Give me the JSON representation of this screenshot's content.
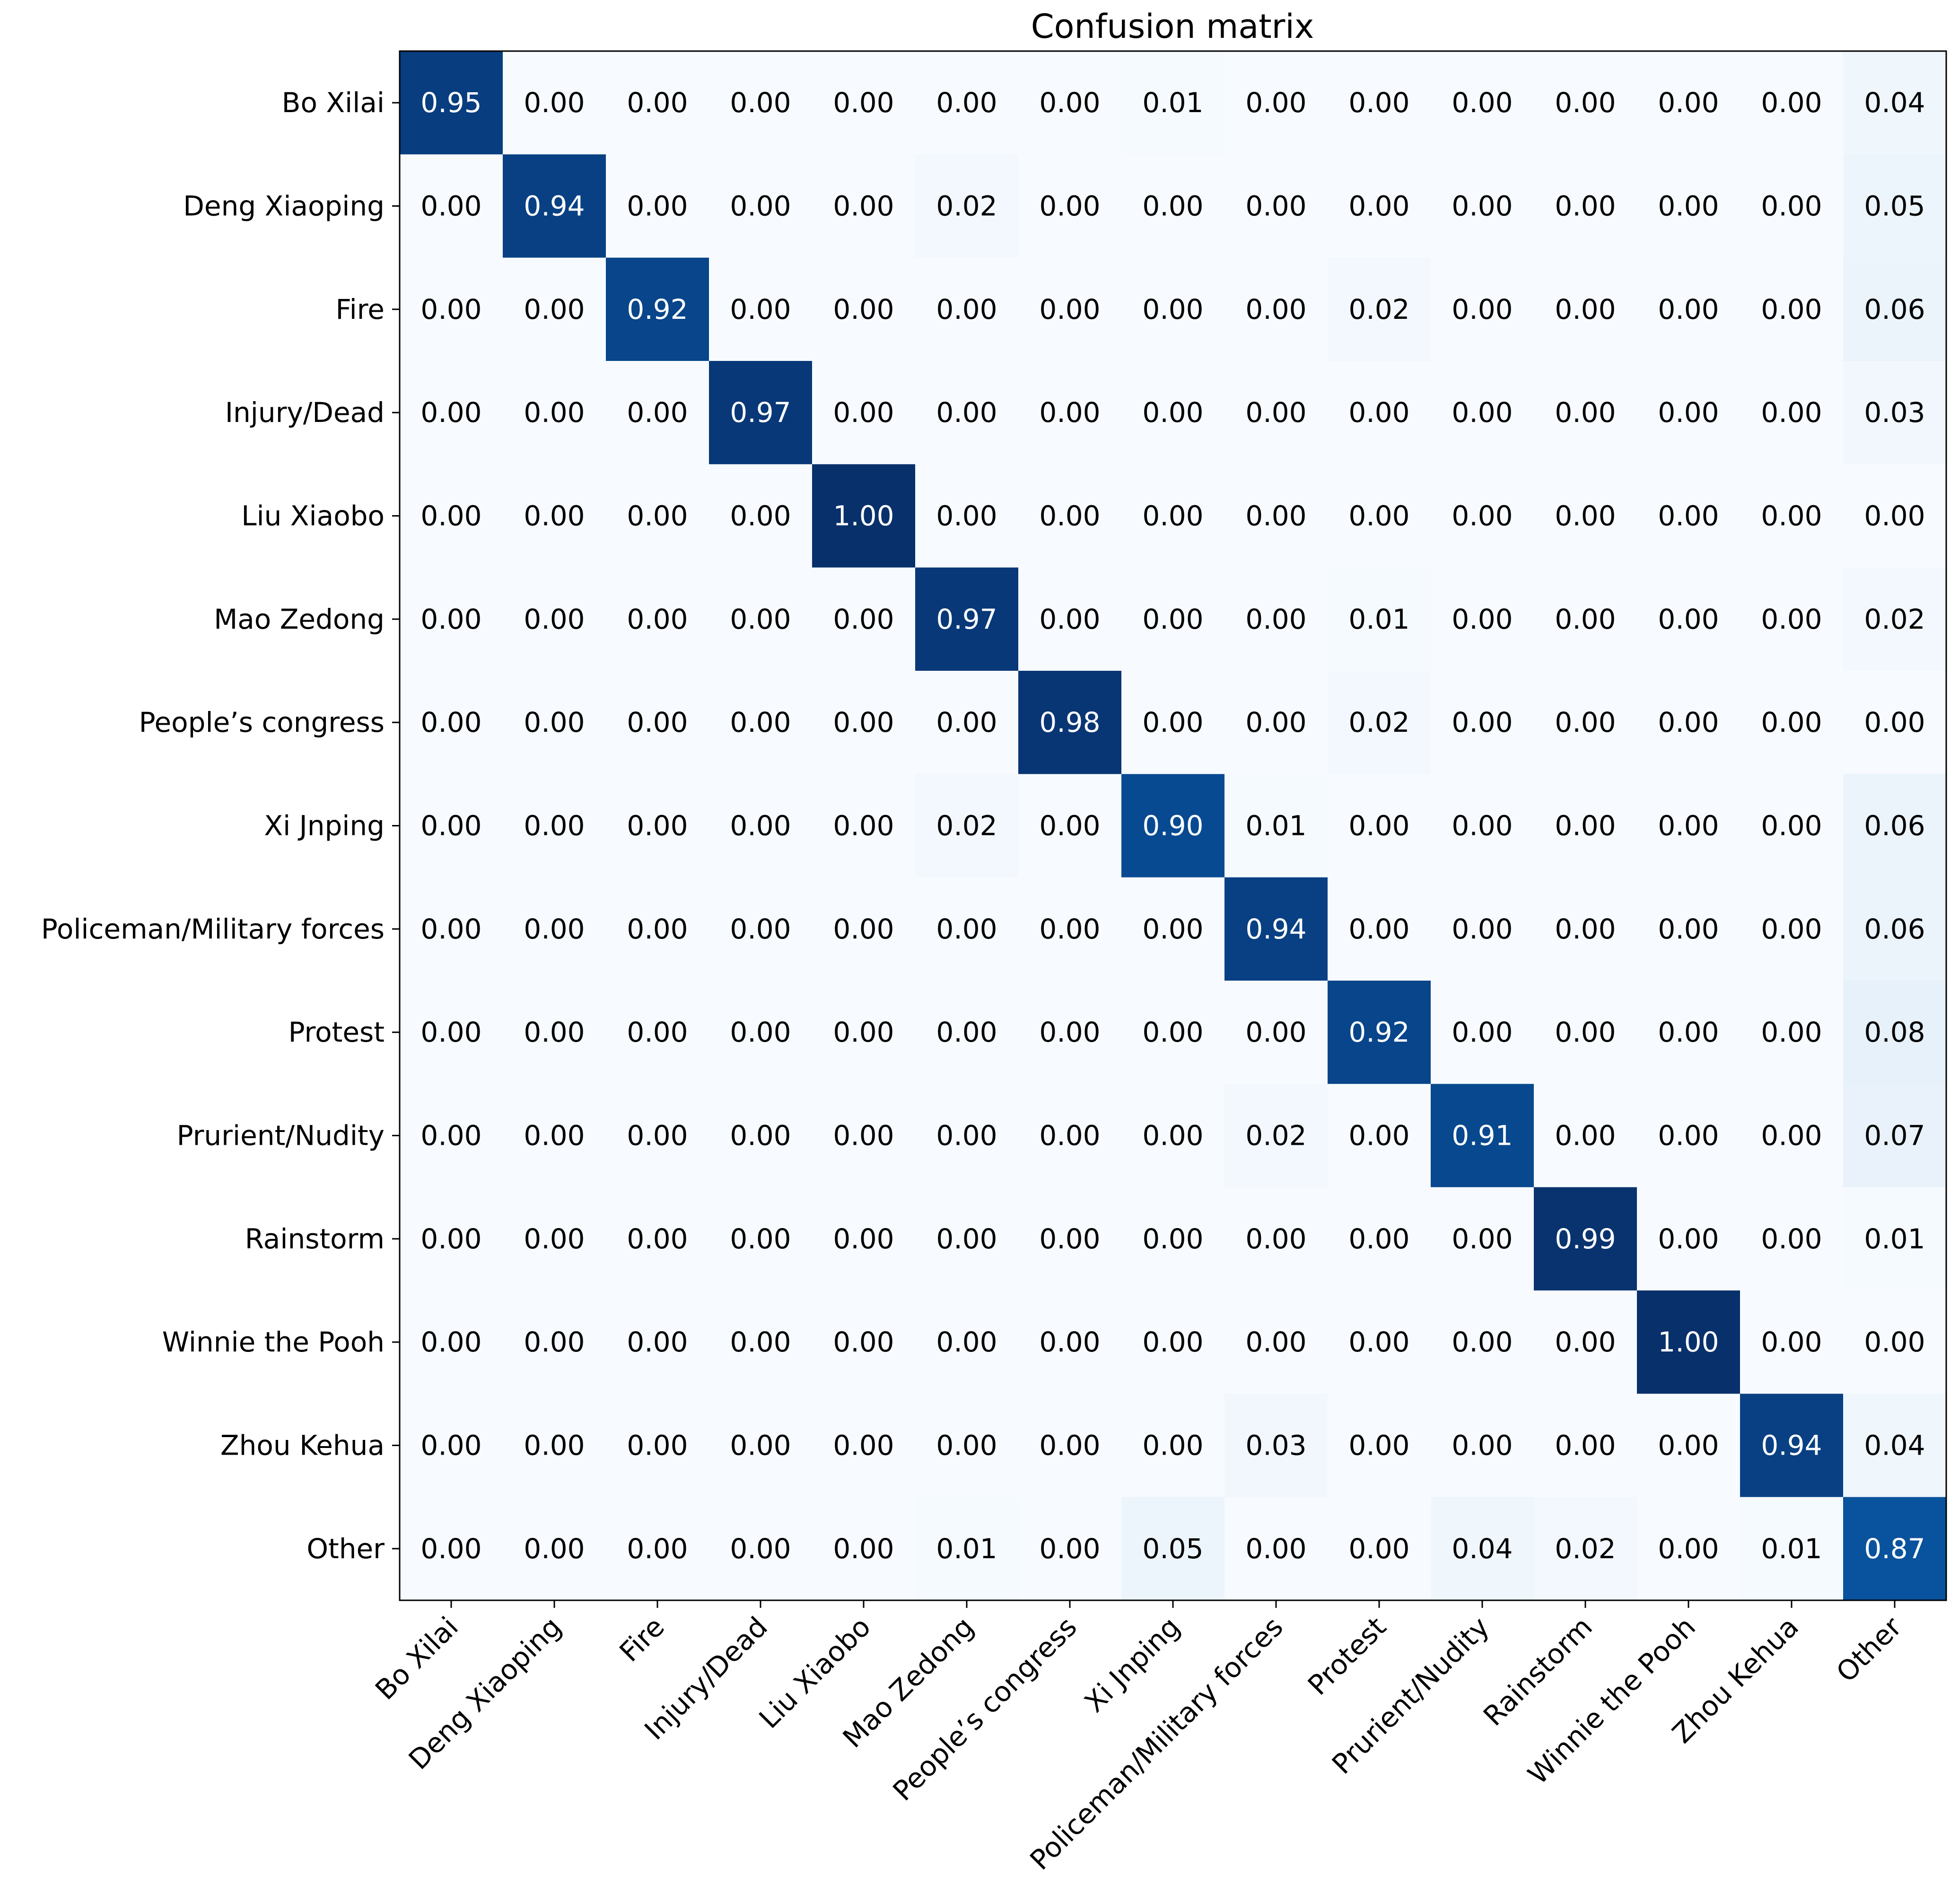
{
  "chart_data": {
    "type": "heatmap",
    "title": "Confusion matrix",
    "xlabel": "",
    "ylabel": "",
    "colormap": "Blues",
    "value_range": [
      0,
      1
    ],
    "colors": {
      "low": "#f7fbff",
      "high": "#08306b",
      "text_dark": "#000000",
      "text_light": "#ffffff"
    },
    "row_labels": [
      "Bo Xilai",
      "Deng Xiaoping",
      "Fire",
      "Injury/Dead",
      "Liu Xiaobo",
      "Mao Zedong",
      "People’s congress",
      "Xi Jnping",
      "Policeman/Military forces",
      "Protest",
      "Prurient/Nudity",
      "Rainstorm",
      "Winnie the Pooh",
      "Zhou Kehua",
      "Other"
    ],
    "col_labels": [
      "Bo Xilai",
      "Deng Xiaoping",
      "Fire",
      "Injury/Dead",
      "Liu Xiaobo",
      "Mao Zedong",
      "People’s congress",
      "Xi Jnping",
      "Policeman/Military forces",
      "Protest",
      "Prurient/Nudity",
      "Rainstorm",
      "Winnie the Pooh",
      "Zhou Kehua",
      "Other"
    ],
    "values": [
      [
        0.95,
        0.0,
        0.0,
        0.0,
        0.0,
        0.0,
        0.0,
        0.01,
        0.0,
        0.0,
        0.0,
        0.0,
        0.0,
        0.0,
        0.04
      ],
      [
        0.0,
        0.94,
        0.0,
        0.0,
        0.0,
        0.02,
        0.0,
        0.0,
        0.0,
        0.0,
        0.0,
        0.0,
        0.0,
        0.0,
        0.05
      ],
      [
        0.0,
        0.0,
        0.92,
        0.0,
        0.0,
        0.0,
        0.0,
        0.0,
        0.0,
        0.02,
        0.0,
        0.0,
        0.0,
        0.0,
        0.06
      ],
      [
        0.0,
        0.0,
        0.0,
        0.97,
        0.0,
        0.0,
        0.0,
        0.0,
        0.0,
        0.0,
        0.0,
        0.0,
        0.0,
        0.0,
        0.03
      ],
      [
        0.0,
        0.0,
        0.0,
        0.0,
        1.0,
        0.0,
        0.0,
        0.0,
        0.0,
        0.0,
        0.0,
        0.0,
        0.0,
        0.0,
        0.0
      ],
      [
        0.0,
        0.0,
        0.0,
        0.0,
        0.0,
        0.97,
        0.0,
        0.0,
        0.0,
        0.01,
        0.0,
        0.0,
        0.0,
        0.0,
        0.02
      ],
      [
        0.0,
        0.0,
        0.0,
        0.0,
        0.0,
        0.0,
        0.98,
        0.0,
        0.0,
        0.02,
        0.0,
        0.0,
        0.0,
        0.0,
        0.0
      ],
      [
        0.0,
        0.0,
        0.0,
        0.0,
        0.0,
        0.02,
        0.0,
        0.9,
        0.01,
        0.0,
        0.0,
        0.0,
        0.0,
        0.0,
        0.06
      ],
      [
        0.0,
        0.0,
        0.0,
        0.0,
        0.0,
        0.0,
        0.0,
        0.0,
        0.94,
        0.0,
        0.0,
        0.0,
        0.0,
        0.0,
        0.06
      ],
      [
        0.0,
        0.0,
        0.0,
        0.0,
        0.0,
        0.0,
        0.0,
        0.0,
        0.0,
        0.92,
        0.0,
        0.0,
        0.0,
        0.0,
        0.08
      ],
      [
        0.0,
        0.0,
        0.0,
        0.0,
        0.0,
        0.0,
        0.0,
        0.0,
        0.02,
        0.0,
        0.91,
        0.0,
        0.0,
        0.0,
        0.07
      ],
      [
        0.0,
        0.0,
        0.0,
        0.0,
        0.0,
        0.0,
        0.0,
        0.0,
        0.0,
        0.0,
        0.0,
        0.99,
        0.0,
        0.0,
        0.01
      ],
      [
        0.0,
        0.0,
        0.0,
        0.0,
        0.0,
        0.0,
        0.0,
        0.0,
        0.0,
        0.0,
        0.0,
        0.0,
        1.0,
        0.0,
        0.0
      ],
      [
        0.0,
        0.0,
        0.0,
        0.0,
        0.0,
        0.0,
        0.0,
        0.0,
        0.03,
        0.0,
        0.0,
        0.0,
        0.0,
        0.94,
        0.04
      ],
      [
        0.0,
        0.0,
        0.0,
        0.0,
        0.0,
        0.01,
        0.0,
        0.05,
        0.0,
        0.0,
        0.04,
        0.02,
        0.0,
        0.01,
        0.87
      ]
    ],
    "grid": false,
    "legend": "none"
  }
}
